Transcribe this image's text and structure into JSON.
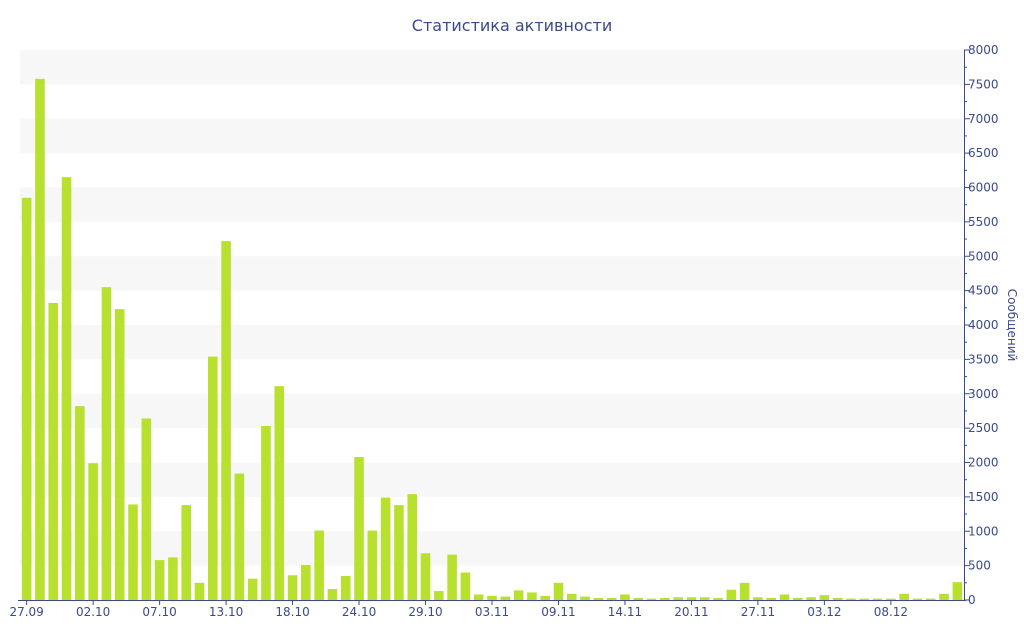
{
  "chart_data": {
    "type": "bar",
    "title": "Статистика активности",
    "ylabel": "Сообщений",
    "y_axis_side": "right",
    "ylim": [
      0,
      8000
    ],
    "y_ticks": [
      0,
      500,
      1000,
      1500,
      2000,
      2500,
      3000,
      3500,
      4000,
      4500,
      5000,
      5500,
      6000,
      6500,
      7000,
      7500,
      8000
    ],
    "x_tick_labels": [
      {
        "label": "27.09",
        "index": 0
      },
      {
        "label": "02.10",
        "index": 5
      },
      {
        "label": "07.10",
        "index": 10
      },
      {
        "label": "13.10",
        "index": 15
      },
      {
        "label": "18.10",
        "index": 20
      },
      {
        "label": "24.10",
        "index": 25
      },
      {
        "label": "29.10",
        "index": 30
      },
      {
        "label": "03.11",
        "index": 35
      },
      {
        "label": "09.11",
        "index": 40
      },
      {
        "label": "14.11",
        "index": 45
      },
      {
        "label": "20.11",
        "index": 50
      },
      {
        "label": "27.11",
        "index": 55
      },
      {
        "label": "03.12",
        "index": 60
      },
      {
        "label": "08.12",
        "index": 65
      }
    ],
    "bar_color": "#b8e02e",
    "grid_band_color": "#f7f7f7",
    "axis_color": "#3b4a8c",
    "values": [
      5850,
      7580,
      4320,
      6150,
      2820,
      1990,
      4550,
      4230,
      1390,
      2640,
      580,
      620,
      1380,
      250,
      3540,
      5220,
      1840,
      310,
      2530,
      3110,
      360,
      510,
      1010,
      160,
      350,
      2080,
      1010,
      1490,
      1380,
      1540,
      680,
      130,
      660,
      400,
      80,
      60,
      50,
      140,
      110,
      60,
      250,
      90,
      50,
      30,
      30,
      80,
      30,
      20,
      30,
      40,
      40,
      40,
      30,
      150,
      250,
      40,
      30,
      80,
      30,
      40,
      70,
      30,
      20,
      20,
      20,
      20,
      90,
      20,
      20,
      90,
      260
    ]
  }
}
